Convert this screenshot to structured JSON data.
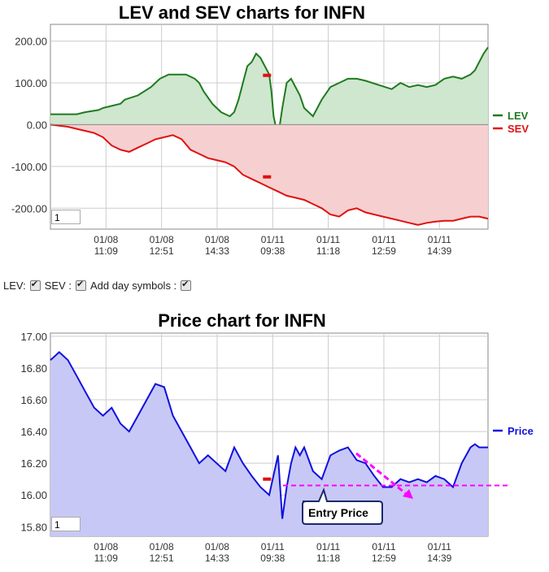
{
  "top_chart": {
    "title": "LEV and SEV charts for INFN",
    "input_value": "1"
  },
  "controls": {
    "lev_label": "LEV:",
    "sev_label": "SEV :",
    "day_label": "Add day symbols :",
    "lev_checked": true,
    "sev_checked": true,
    "day_checked": true
  },
  "bottom_chart": {
    "title": "Price chart for INFN",
    "input_value": "1",
    "annotation": "Entry Price"
  },
  "colors": {
    "lev": "#1e7b1e",
    "lev_fill": "#cfe6cf",
    "sev": "#e01010",
    "sev_fill": "#f6d0d0",
    "price": "#1010e0",
    "price_fill": "#c8c8f6",
    "annotation": "#ff00ff"
  },
  "chart_data": [
    {
      "type": "area",
      "title": "LEV and SEV charts for INFN",
      "x_tick_labels": [
        "01/08\n11:09",
        "01/08\n12:51",
        "01/08\n14:33",
        "01/11\n09:38",
        "01/11\n11:18",
        "01/11\n12:59",
        "01/11\n14:39"
      ],
      "y_tick_labels": [
        "200.00",
        "100.00",
        "0.00",
        "-100.00",
        "-200.00"
      ],
      "ylim": [
        -250,
        240
      ],
      "legend_position": "right",
      "grid": true,
      "series": [
        {
          "name": "LEV",
          "x": [
            0,
            0.06,
            0.08,
            0.11,
            0.12,
            0.16,
            0.17,
            0.2,
            0.23,
            0.24,
            0.25,
            0.27,
            0.28,
            0.29,
            0.31,
            0.33,
            0.34,
            0.35,
            0.37,
            0.38,
            0.39,
            0.4,
            0.41,
            0.42,
            0.43,
            0.44,
            0.45,
            0.46,
            0.47,
            0.48,
            0.49,
            0.5,
            0.505,
            0.51,
            0.52,
            0.53,
            0.54,
            0.55,
            0.56,
            0.57,
            0.58,
            0.6,
            0.62,
            0.64,
            0.66,
            0.68,
            0.7,
            0.72,
            0.75,
            0.78,
            0.8,
            0.82,
            0.84,
            0.86,
            0.88,
            0.9,
            0.92,
            0.94,
            0.96,
            0.97,
            0.98,
            0.99,
            1.0
          ],
          "values": [
            25,
            25,
            30,
            35,
            40,
            50,
            60,
            70,
            90,
            100,
            110,
            120,
            120,
            120,
            120,
            110,
            100,
            80,
            50,
            40,
            30,
            25,
            20,
            30,
            60,
            100,
            140,
            150,
            170,
            160,
            140,
            120,
            80,
            20,
            -30,
            40,
            100,
            110,
            90,
            70,
            40,
            20,
            60,
            90,
            100,
            110,
            110,
            105,
            95,
            85,
            100,
            90,
            95,
            90,
            95,
            110,
            115,
            110,
            120,
            130,
            150,
            170,
            185
          ]
        },
        {
          "name": "SEV",
          "x": [
            0,
            0.04,
            0.06,
            0.08,
            0.1,
            0.12,
            0.14,
            0.16,
            0.18,
            0.2,
            0.22,
            0.24,
            0.26,
            0.28,
            0.3,
            0.32,
            0.34,
            0.36,
            0.38,
            0.4,
            0.42,
            0.44,
            0.46,
            0.48,
            0.5,
            0.52,
            0.54,
            0.56,
            0.58,
            0.6,
            0.62,
            0.64,
            0.66,
            0.68,
            0.7,
            0.72,
            0.74,
            0.76,
            0.78,
            0.8,
            0.82,
            0.84,
            0.86,
            0.88,
            0.9,
            0.92,
            0.94,
            0.96,
            0.98,
            1.0
          ],
          "values": [
            0,
            -5,
            -10,
            -15,
            -20,
            -30,
            -50,
            -60,
            -65,
            -55,
            -45,
            -35,
            -30,
            -25,
            -35,
            -60,
            -70,
            -80,
            -85,
            -90,
            -100,
            -120,
            -130,
            -140,
            -150,
            -160,
            -170,
            -175,
            -180,
            -190,
            -200,
            -215,
            -220,
            -205,
            -200,
            -210,
            -215,
            -220,
            -225,
            -230,
            -235,
            -240,
            -235,
            -232,
            -230,
            -230,
            -225,
            -220,
            -220,
            -225
          ]
        }
      ]
    },
    {
      "type": "area",
      "title": "Price chart for INFN",
      "x_tick_labels": [
        "01/08\n11:09",
        "01/08\n12:51",
        "01/08\n14:33",
        "01/11\n09:38",
        "01/11\n11:18",
        "01/11\n12:59",
        "01/11\n14:39"
      ],
      "y_tick_labels": [
        "17.00",
        "16.80",
        "16.60",
        "16.40",
        "16.20",
        "16.00",
        "15.80"
      ],
      "ylim": [
        15.74,
        17.02
      ],
      "legend_position": "right",
      "grid": true,
      "series": [
        {
          "name": "Price",
          "x": [
            0,
            0.02,
            0.04,
            0.06,
            0.08,
            0.1,
            0.12,
            0.14,
            0.16,
            0.18,
            0.2,
            0.22,
            0.24,
            0.26,
            0.28,
            0.3,
            0.32,
            0.34,
            0.36,
            0.38,
            0.4,
            0.42,
            0.44,
            0.46,
            0.48,
            0.5,
            0.52,
            0.53,
            0.54,
            0.55,
            0.56,
            0.57,
            0.58,
            0.6,
            0.62,
            0.64,
            0.66,
            0.68,
            0.7,
            0.72,
            0.74,
            0.76,
            0.78,
            0.8,
            0.82,
            0.84,
            0.86,
            0.88,
            0.9,
            0.92,
            0.94,
            0.96,
            0.97,
            0.98,
            1.0
          ],
          "values": [
            16.85,
            16.9,
            16.85,
            16.75,
            16.65,
            16.55,
            16.5,
            16.55,
            16.45,
            16.4,
            16.5,
            16.6,
            16.7,
            16.68,
            16.5,
            16.4,
            16.3,
            16.2,
            16.25,
            16.2,
            16.15,
            16.3,
            16.2,
            16.12,
            16.05,
            16.0,
            16.25,
            15.85,
            16.05,
            16.2,
            16.3,
            16.25,
            16.3,
            16.15,
            16.1,
            16.25,
            16.28,
            16.3,
            16.22,
            16.2,
            16.12,
            16.05,
            16.05,
            16.1,
            16.08,
            16.1,
            16.08,
            16.12,
            16.1,
            16.05,
            16.2,
            16.3,
            16.32,
            16.3,
            16.3
          ]
        }
      ],
      "annotations": [
        "Entry Price"
      ]
    }
  ]
}
